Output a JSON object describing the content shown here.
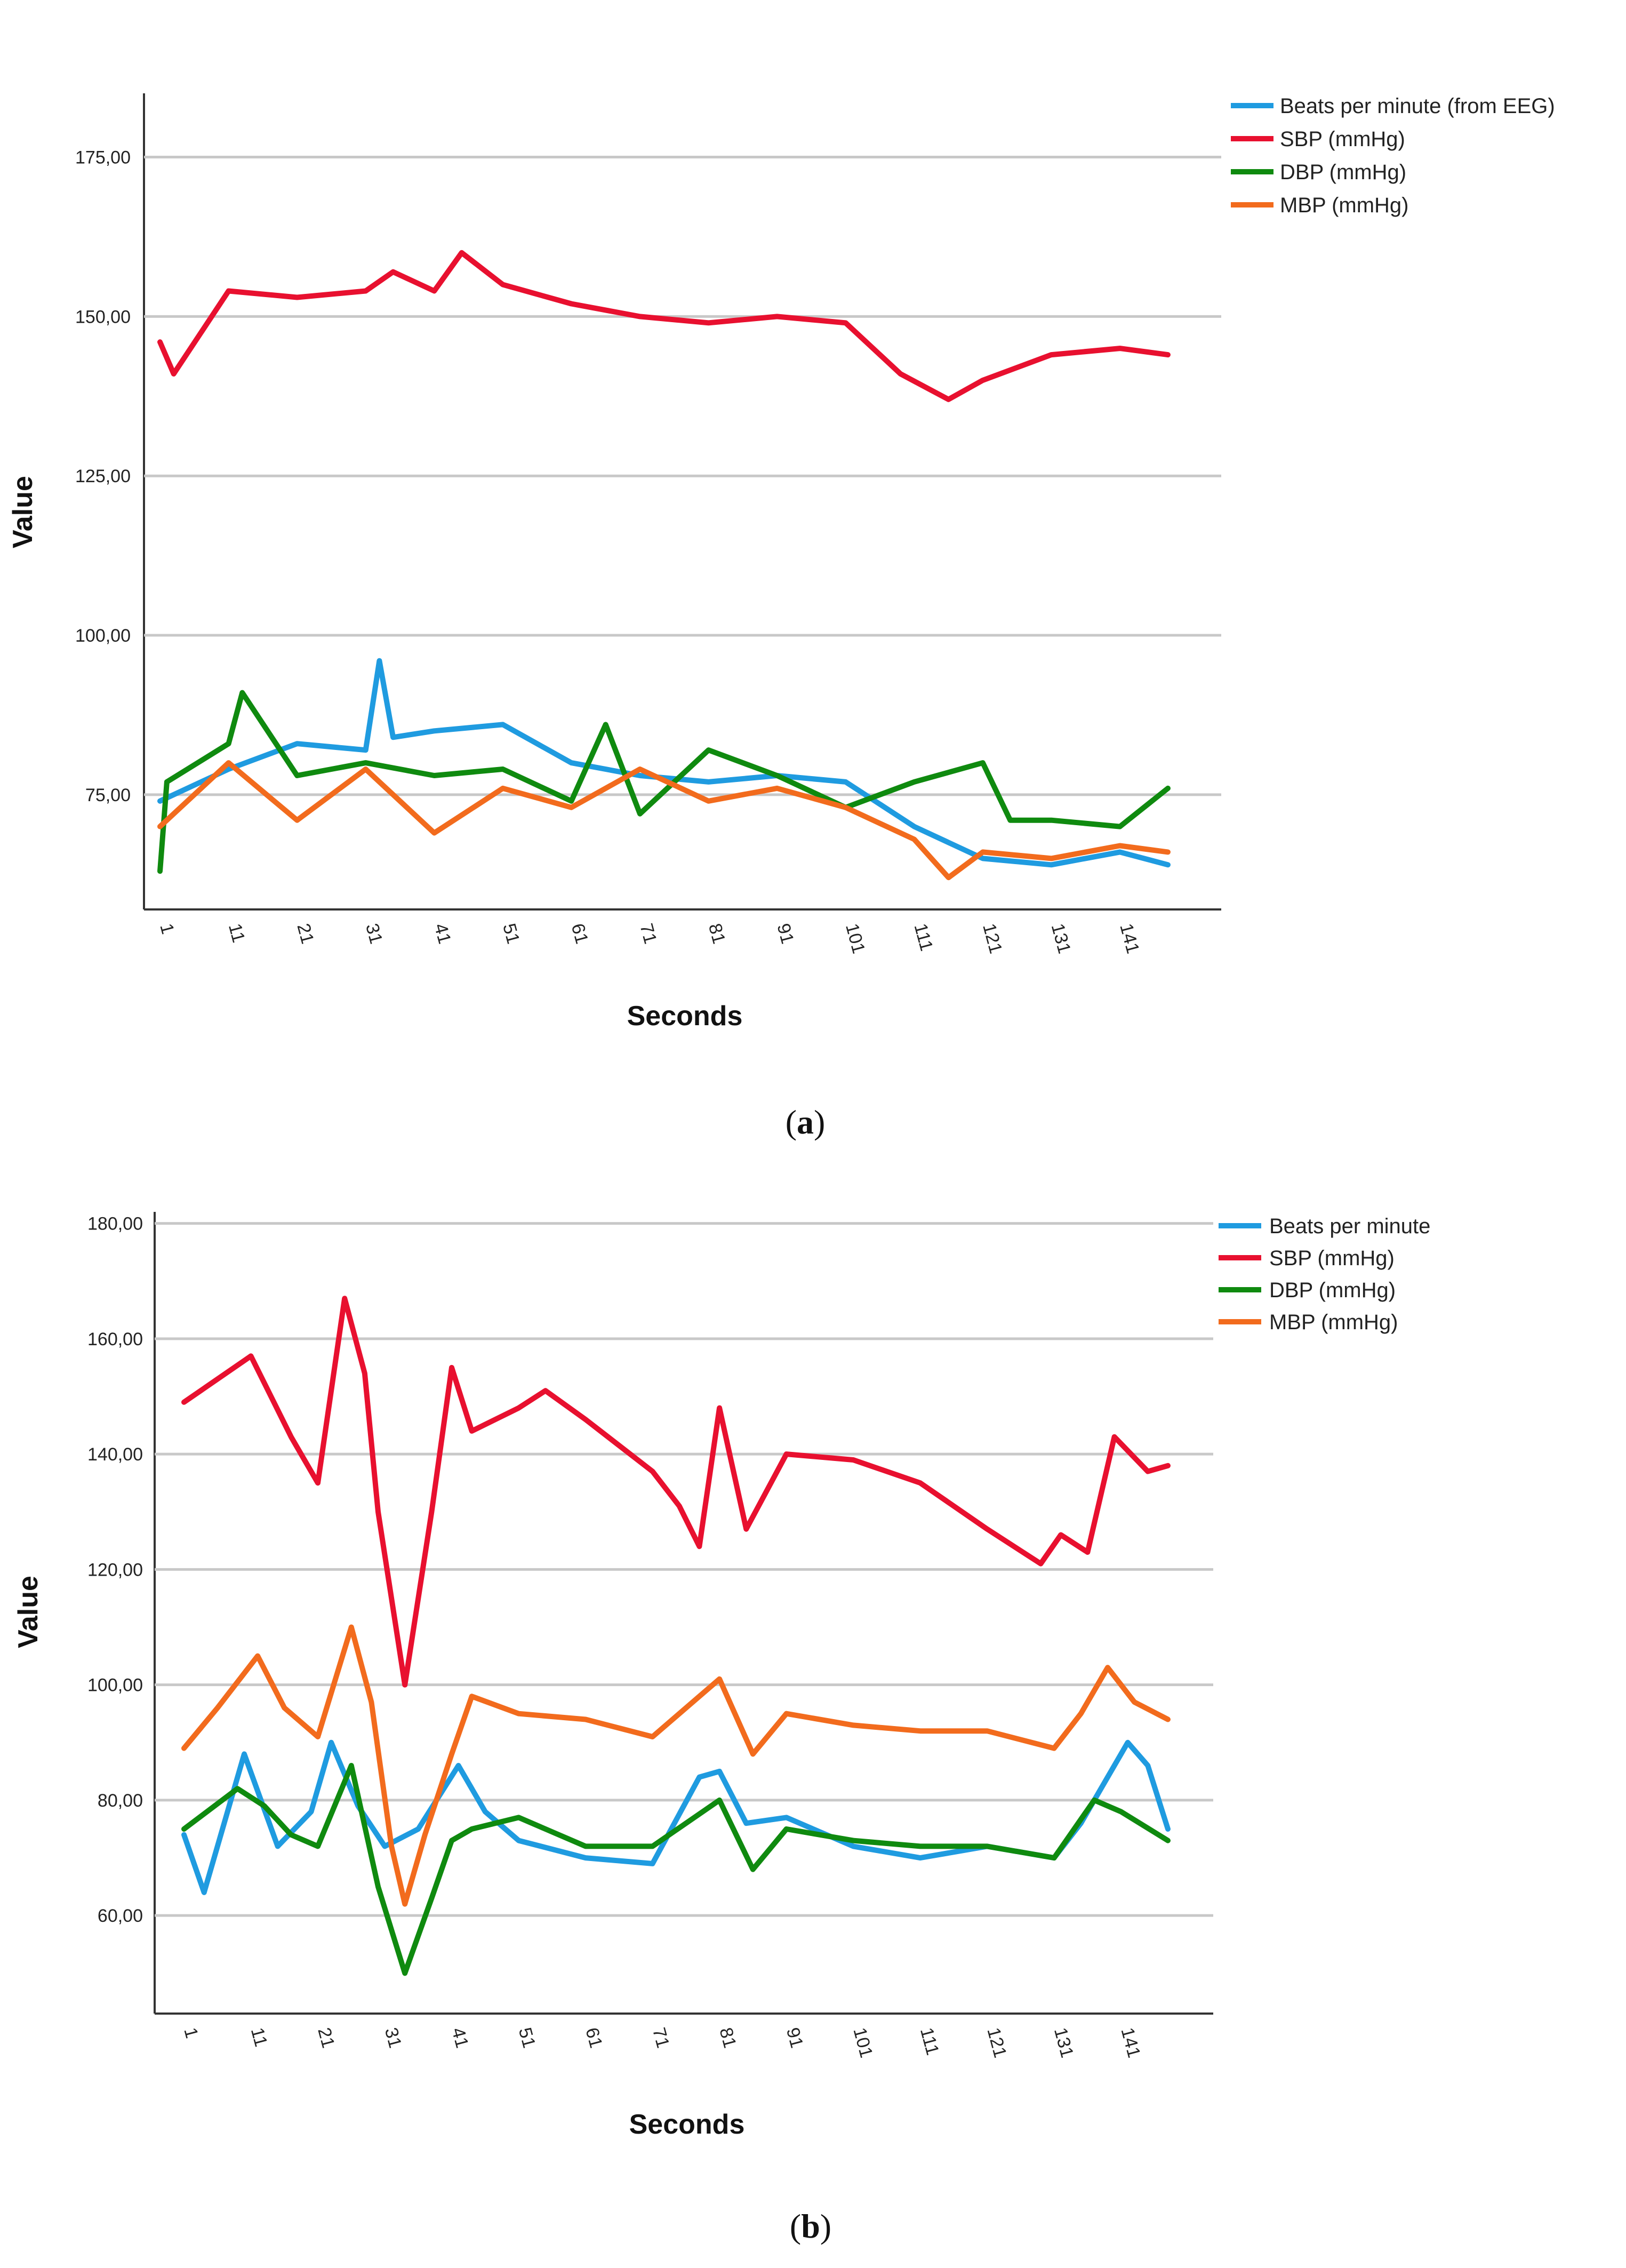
{
  "colors": {
    "bpm": "#1f9be0",
    "sbp": "#e8102f",
    "dbp": "#0f8a0f",
    "mbp": "#f26b1d"
  },
  "chart_data": [
    {
      "type": "line",
      "panel_label": {
        "open": "(",
        "letter": "a",
        "close": ")"
      },
      "title": "",
      "xlabel": "Seconds",
      "ylabel": "Value",
      "xlim": [
        1,
        148
      ],
      "ylim": [
        57,
        185
      ],
      "yticks": [
        75,
        100,
        125,
        150,
        175
      ],
      "ytick_labels": [
        "75,00",
        "100,00",
        "125,00",
        "150,00",
        "175,00"
      ],
      "xticks": [
        1,
        11,
        21,
        31,
        41,
        51,
        61,
        71,
        81,
        91,
        101,
        111,
        121,
        131,
        141
      ],
      "xtick_labels": [
        "1",
        "11",
        "21",
        "31",
        "41",
        "51",
        "61",
        "71",
        "81",
        "91",
        "101",
        "111",
        "121",
        "131",
        "141"
      ],
      "legend_position": "top-right",
      "series": [
        {
          "name": "Beats per minute (from EEG)",
          "color_key": "bpm",
          "x": [
            1,
            11,
            21,
            31,
            33,
            35,
            41,
            51,
            61,
            71,
            81,
            91,
            101,
            111,
            121,
            131,
            141,
            148
          ],
          "values": [
            74,
            79,
            83,
            82,
            96,
            84,
            85,
            86,
            80,
            78,
            77,
            78,
            77,
            70,
            65,
            64,
            66,
            64
          ]
        },
        {
          "name": "SBP (mmHg)",
          "color_key": "sbp",
          "x": [
            1,
            3,
            11,
            21,
            31,
            35,
            41,
            45,
            51,
            61,
            71,
            81,
            91,
            101,
            109,
            116,
            121,
            131,
            141,
            148
          ],
          "values": [
            146,
            141,
            154,
            153,
            154,
            157,
            154,
            160,
            155,
            152,
            150,
            149,
            150,
            149,
            141,
            137,
            140,
            144,
            145,
            144
          ]
        },
        {
          "name": "DBP (mmHg)",
          "color_key": "dbp",
          "x": [
            1,
            2,
            11,
            13,
            21,
            31,
            41,
            51,
            61,
            66,
            71,
            81,
            91,
            101,
            111,
            121,
            125,
            131,
            141,
            148
          ],
          "values": [
            63,
            77,
            83,
            91,
            78,
            80,
            78,
            79,
            74,
            86,
            72,
            82,
            78,
            73,
            77,
            80,
            71,
            71,
            70,
            76
          ]
        },
        {
          "name": "MBP (mmHg)",
          "color_key": "mbp",
          "x": [
            1,
            11,
            21,
            31,
            41,
            51,
            61,
            71,
            81,
            91,
            101,
            111,
            116,
            121,
            131,
            141,
            148
          ],
          "values": [
            70,
            80,
            71,
            79,
            69,
            76,
            73,
            79,
            74,
            76,
            73,
            68,
            62,
            66,
            65,
            67,
            66
          ]
        }
      ]
    },
    {
      "type": "line",
      "panel_label": {
        "open": "(",
        "letter": "b",
        "close": ")"
      },
      "title": "",
      "xlabel": "Seconds",
      "ylabel": "Value",
      "xlim": [
        1,
        148
      ],
      "ylim": [
        43,
        182
      ],
      "yticks": [
        60,
        80,
        100,
        120,
        140,
        160,
        180
      ],
      "ytick_labels": [
        "60,00",
        "80,00",
        "100,00",
        "120,00",
        "140,00",
        "160,00",
        "180,00"
      ],
      "xticks": [
        1,
        11,
        21,
        31,
        41,
        51,
        61,
        71,
        81,
        91,
        101,
        111,
        121,
        131,
        141
      ],
      "xtick_labels": [
        "1",
        "11",
        "21",
        "31",
        "41",
        "51",
        "61",
        "71",
        "81",
        "91",
        "101",
        "111",
        "121",
        "131",
        "141"
      ],
      "legend_position": "top-right",
      "series": [
        {
          "name": "Beats per minute",
          "color_key": "bpm",
          "x": [
            1,
            4,
            10,
            15,
            20,
            23,
            27,
            31,
            36,
            42,
            46,
            51,
            61,
            71,
            78,
            81,
            85,
            91,
            101,
            111,
            121,
            131,
            135,
            142,
            145,
            148
          ],
          "values": [
            74,
            64,
            88,
            72,
            78,
            90,
            79,
            72,
            75,
            86,
            78,
            73,
            70,
            69,
            84,
            85,
            76,
            77,
            72,
            70,
            72,
            70,
            76,
            90,
            86,
            75
          ]
        },
        {
          "name": "SBP (mmHg)",
          "color_key": "sbp",
          "x": [
            1,
            11,
            17,
            21,
            25,
            28,
            30,
            34,
            38,
            41,
            44,
            51,
            55,
            61,
            71,
            75,
            78,
            81,
            85,
            91,
            101,
            111,
            121,
            129,
            132,
            136,
            140,
            145,
            148
          ],
          "values": [
            149,
            157,
            143,
            135,
            167,
            154,
            130,
            100,
            130,
            155,
            144,
            148,
            151,
            146,
            137,
            131,
            124,
            148,
            127,
            140,
            139,
            135,
            127,
            121,
            126,
            123,
            143,
            137,
            138
          ]
        },
        {
          "name": "DBP (mmHg)",
          "color_key": "dbp",
          "x": [
            1,
            9,
            13,
            17,
            21,
            26,
            30,
            34,
            38,
            41,
            44,
            51,
            61,
            71,
            81,
            86,
            91,
            101,
            111,
            121,
            131,
            137,
            141,
            148
          ],
          "values": [
            75,
            82,
            79,
            74,
            72,
            86,
            65,
            50,
            63,
            73,
            75,
            77,
            72,
            72,
            80,
            68,
            75,
            73,
            72,
            72,
            70,
            80,
            78,
            73
          ]
        },
        {
          "name": "MBP (mmHg)",
          "color_key": "mbp",
          "x": [
            1,
            6,
            12,
            16,
            21,
            26,
            29,
            32,
            34,
            37,
            41,
            44,
            51,
            61,
            71,
            81,
            86,
            91,
            101,
            111,
            121,
            131,
            135,
            139,
            143,
            148
          ],
          "values": [
            89,
            96,
            105,
            96,
            91,
            110,
            97,
            72,
            62,
            74,
            88,
            98,
            95,
            94,
            91,
            101,
            88,
            95,
            93,
            92,
            92,
            89,
            95,
            103,
            97,
            94
          ]
        }
      ]
    }
  ]
}
